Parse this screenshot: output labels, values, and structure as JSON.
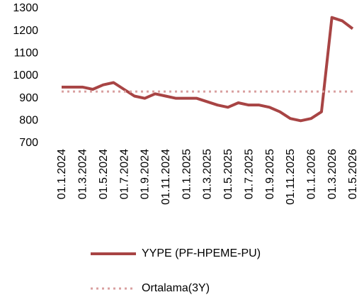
{
  "chart_data": {
    "type": "line",
    "categories": [
      "01.1.2024",
      null,
      "01.3.2024",
      null,
      "01.5.2024",
      null,
      "01.7.2024",
      null,
      "01.9.2024",
      null,
      "01.11.2024",
      null,
      "01.1.2025",
      null,
      "01.3.2025",
      null,
      "01.5.2025",
      null,
      "01.7.2025",
      null,
      "01.9.2025",
      null,
      "01.11.2025",
      null,
      "01.1.2026",
      null,
      "01.3.2026",
      null,
      "01.5.2026"
    ],
    "series": [
      {
        "name": "YYPE (PF-HPEME-PU)",
        "color": "#a84444",
        "style": "solid",
        "values": [
          950,
          950,
          950,
          940,
          960,
          970,
          940,
          910,
          900,
          920,
          910,
          900,
          900,
          900,
          885,
          870,
          860,
          880,
          870,
          870,
          860,
          840,
          810,
          800,
          810,
          840,
          1260,
          1245,
          1210
        ]
      },
      {
        "name": "Ortalama(3Y)",
        "color": "#d9a0a0",
        "style": "dotted",
        "values": [
          930,
          930,
          930,
          930,
          930,
          930,
          930,
          930,
          930,
          930,
          930,
          930,
          930,
          930,
          930,
          930,
          930,
          930,
          930,
          930,
          930,
          930,
          930,
          930,
          930,
          930,
          930,
          930,
          930
        ]
      }
    ],
    "ylim": [
      700,
      1300
    ],
    "yticks": [
      700,
      800,
      900,
      1000,
      1100,
      1200,
      1300
    ],
    "grid": false
  }
}
